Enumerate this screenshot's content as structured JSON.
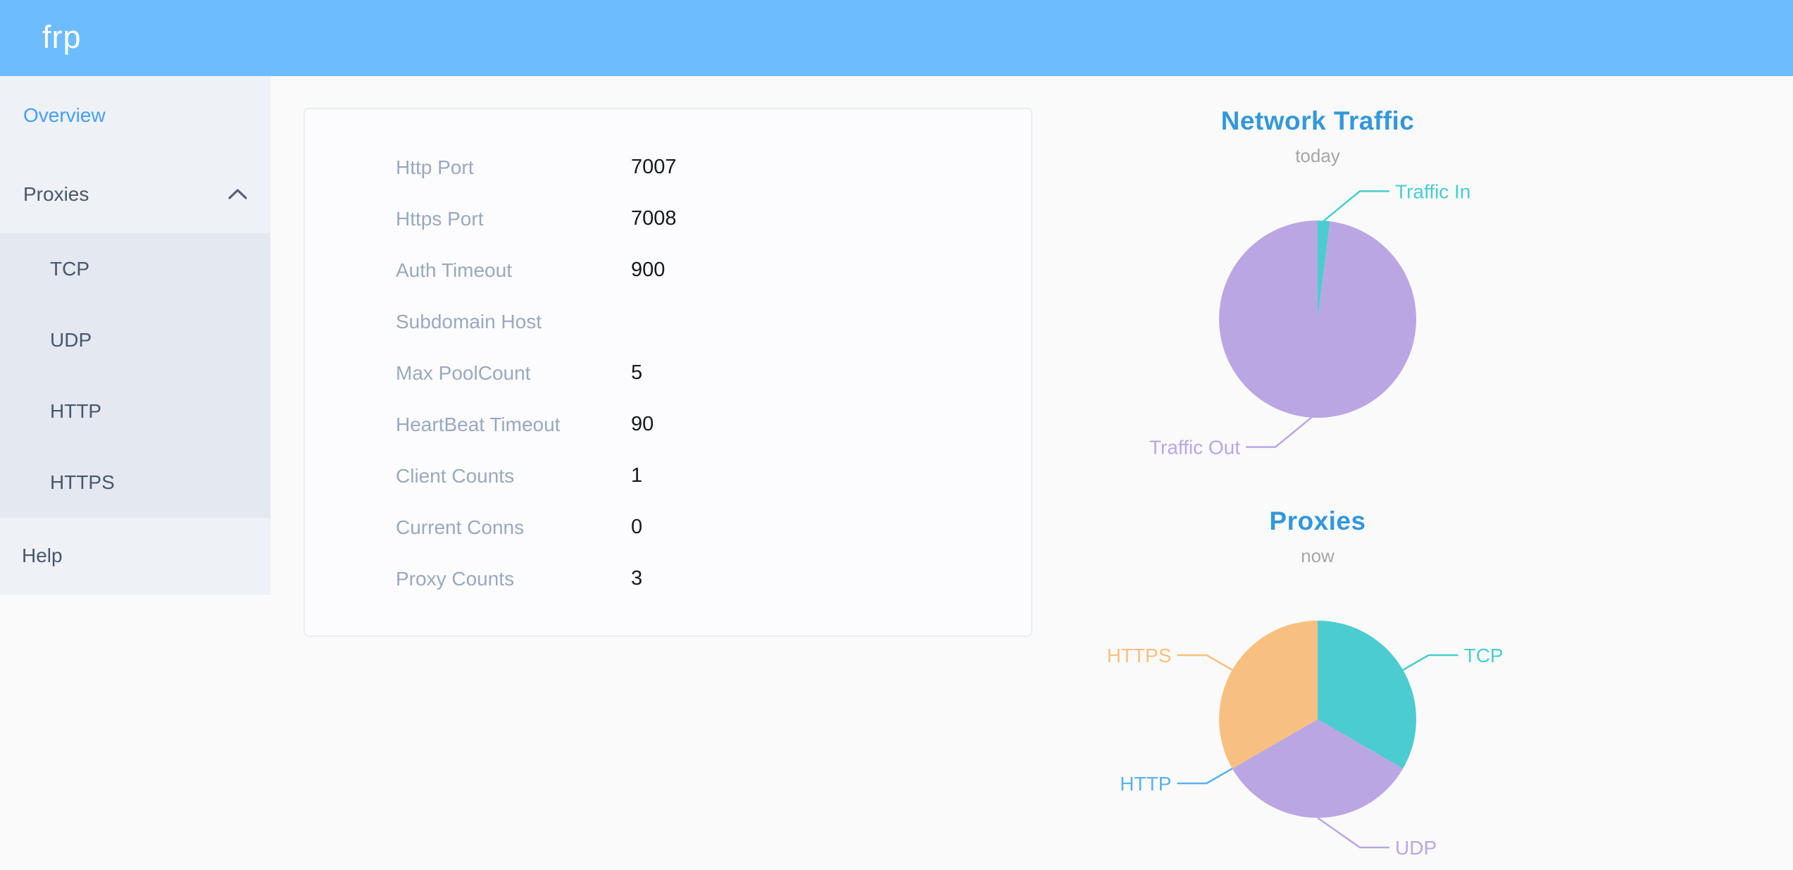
{
  "header": {
    "logo_text": "frp",
    "bg_color": "#6dbcfe"
  },
  "sidebar": {
    "overview_label": "Overview",
    "proxies_label": "Proxies",
    "proxies_expanded": true,
    "submenu": [
      "TCP",
      "UDP",
      "HTTP",
      "HTTPS"
    ],
    "help_label": "Help",
    "active_item": "Overview",
    "active_color": "#459ef9",
    "text_color": "#48576a"
  },
  "overview_panel": {
    "rows": [
      {
        "label": "Http Port",
        "value": "7007"
      },
      {
        "label": "Https Port",
        "value": "7008"
      },
      {
        "label": "Auth Timeout",
        "value": "900"
      },
      {
        "label": "Subdomain Host",
        "value": ""
      },
      {
        "label": "Max PoolCount",
        "value": "5"
      },
      {
        "label": "HeartBeat Timeout",
        "value": "90"
      },
      {
        "label": "Client Counts",
        "value": "1"
      },
      {
        "label": "Current Conns",
        "value": "0"
      },
      {
        "label": "Proxy Counts",
        "value": "3"
      }
    ]
  },
  "chart_data": [
    {
      "type": "pie",
      "title": "Network Traffic",
      "subtitle": "today",
      "title_color": "#3398db",
      "subtitle_color": "#a6a6a6",
      "labels_position": "outside",
      "legend": "none",
      "values_unit": "percent (estimated from arc angles)",
      "slices": [
        {
          "label": "Traffic In",
          "value": 2,
          "color": "#4bccd0"
        },
        {
          "label": "Traffic Out",
          "value": 98,
          "color": "#bba6e4"
        }
      ]
    },
    {
      "type": "pie",
      "title": "Proxies",
      "subtitle": "now",
      "title_color": "#3398db",
      "subtitle_color": "#a6a6a6",
      "labels_position": "outside",
      "legend": "none",
      "values_unit": "proxy count",
      "slices": [
        {
          "label": "TCP",
          "value": 1,
          "color": "#4bccd0"
        },
        {
          "label": "UDP",
          "value": 1,
          "color": "#bba6e4"
        },
        {
          "label": "HTTP",
          "value": 0,
          "color": "#5ab1ef"
        },
        {
          "label": "HTTPS",
          "value": 1,
          "color": "#f8c080"
        }
      ]
    }
  ]
}
